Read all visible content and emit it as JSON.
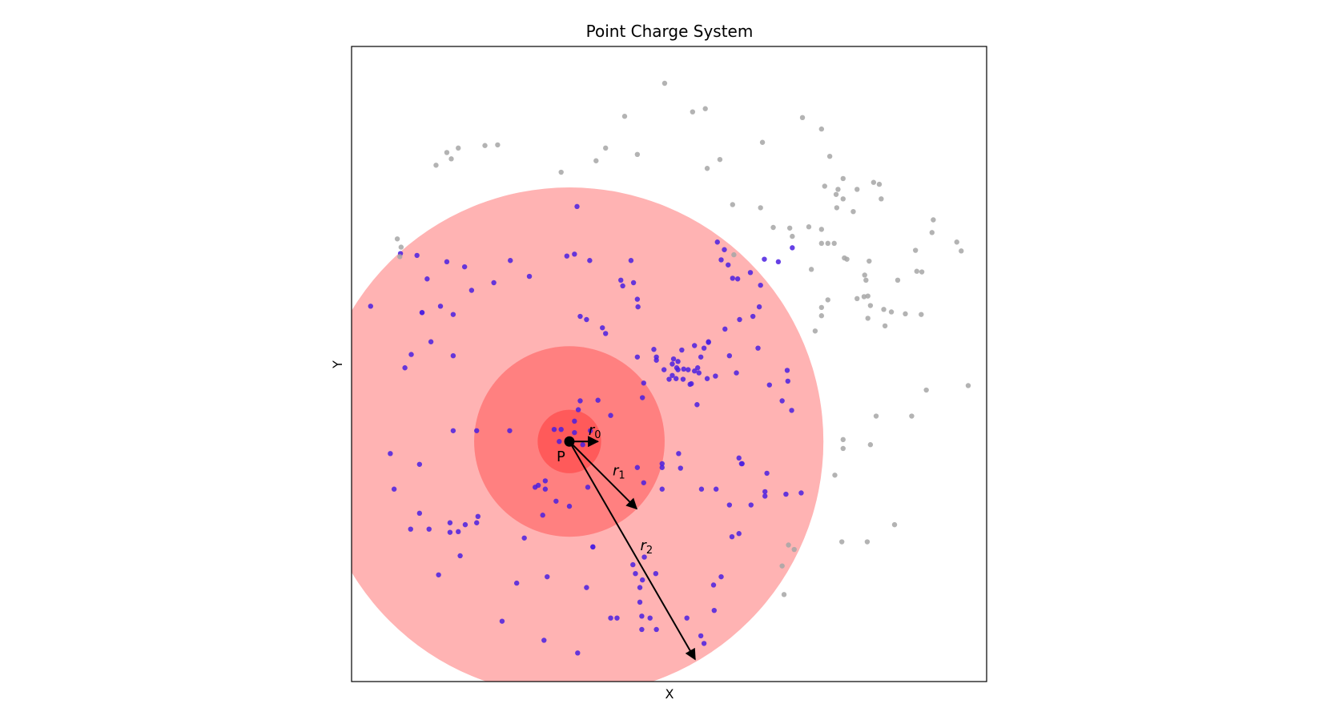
{
  "chart_data": {
    "type": "scatter",
    "title": "Point Charge System",
    "xlabel": "X",
    "ylabel": "Y",
    "xlim": [
      0,
      10
    ],
    "ylim": [
      0,
      10
    ],
    "ticks_visible": false,
    "grid": false,
    "point_P": {
      "label": "P",
      "x": 3.43,
      "y": 3.78,
      "color": "#000000"
    },
    "circles": [
      {
        "name": "r2",
        "radius": 4.0,
        "color": "#ffb3b3"
      },
      {
        "name": "r1",
        "radius": 1.5,
        "color": "#ff8080"
      },
      {
        "name": "r0",
        "radius": 0.5,
        "color": "#ff5a5a"
      }
    ],
    "radius_arrows": [
      {
        "label": "r",
        "subscript": "0",
        "dx": 0.45,
        "dy": 0.0
      },
      {
        "label": "r",
        "subscript": "1",
        "dx": 1.06,
        "dy": -1.06
      },
      {
        "label": "r",
        "subscript": "2",
        "dx": 1.98,
        "dy": -3.43
      }
    ],
    "series": [
      {
        "color": "#4a1fe0",
        "x": [
          3.55,
          2.5,
          3.75,
          4.4,
          1.4,
          0.3,
          0.77,
          1.03,
          1.78,
          1.5,
          1.19,
          1.11,
          1.25,
          1.11,
          1.6,
          1.6,
          0.94,
          0.84,
          1.89,
          2.24,
          2.8,
          3.39,
          3.51,
          4.24,
          4.44,
          4.27,
          4.5,
          4.51,
          3.6,
          3.7,
          3.95,
          4.0,
          4.5,
          4.76,
          4.8,
          4.8,
          5.2,
          5.14,
          5.05,
          5.07,
          5.14,
          5.33,
          5.12,
          5.23,
          5.11,
          5.22,
          5.05,
          5.3,
          5.4,
          5.62,
          5.62,
          5.5,
          5.4,
          5.45,
          5.6,
          5.73,
          6.4,
          6.11,
          6.42,
          6.08,
          6.28,
          5.76,
          5.87,
          5.82,
          5.93,
          6.0,
          6.44,
          6.5,
          6.72,
          6.94,
          6.58,
          6.87,
          6.78,
          6.93,
          6.06,
          5.47,
          4.92,
          5.0,
          3.6,
          4.08,
          3.3,
          3.76,
          3.19,
          3.51,
          3.27,
          3.64,
          2.49,
          1.97,
          1.6,
          0.61,
          0.67,
          0.93,
          1.22,
          1.68,
          2.72,
          2.89,
          3.05,
          2.94,
          3.05,
          3.72,
          4.5,
          4.89,
          4.89,
          4.6,
          5.15,
          5.18,
          5.51,
          5.74,
          6.14,
          6.1,
          6.54,
          6.84,
          7.08,
          6.51,
          6.51,
          4.58,
          3.88,
          3.51,
          3.57,
          5.35,
          5.44
        ],
        "y": [
          7.48,
          6.63,
          6.63,
          6.63,
          5.91,
          5.91,
          6.74,
          6.71,
          6.53,
          6.61,
          6.34,
          5.81,
          5.35,
          5.81,
          5.78,
          5.13,
          5.15,
          4.94,
          6.16,
          6.28,
          6.38,
          6.7,
          6.73,
          6.32,
          6.28,
          6.23,
          6.02,
          5.9,
          5.75,
          5.7,
          5.57,
          5.48,
          5.11,
          5.23,
          5.11,
          5.06,
          5.22,
          5.04,
          5.0,
          5.08,
          4.91,
          4.68,
          4.94,
          4.92,
          4.77,
          4.76,
          4.82,
          4.91,
          5.29,
          5.34,
          5.35,
          5.11,
          4.89,
          4.94,
          4.77,
          4.81,
          5.25,
          5.7,
          5.9,
          6.34,
          6.44,
          6.92,
          6.8,
          6.64,
          6.56,
          6.35,
          6.24,
          6.65,
          6.61,
          6.83,
          4.67,
          4.73,
          4.42,
          4.27,
          4.86,
          4.86,
          4.91,
          4.76,
          4.42,
          4.19,
          3.97,
          3.95,
          3.97,
          3.92,
          3.78,
          3.73,
          3.95,
          3.95,
          3.95,
          3.59,
          3.03,
          2.4,
          2.4,
          2.36,
          2.26,
          3.06,
          3.16,
          3.09,
          3.03,
          3.06,
          3.37,
          3.37,
          3.43,
          3.13,
          3.59,
          3.36,
          3.03,
          3.03,
          3.43,
          3.52,
          3.28,
          2.95,
          2.97,
          2.99,
          2.92,
          4.47,
          4.43,
          4.1,
          4.28,
          4.69,
          4.36
        ]
      },
      {
        "color": "#4a1fe0",
        "x": [
          3.22,
          3.43,
          3.8,
          3.8,
          1.97,
          1.55,
          1.55,
          1.07,
          1.07,
          3.01,
          1.71,
          1.79,
          1.99,
          1.37,
          3.7,
          4.54,
          4.54,
          5.95,
          6.15,
          6.29,
          5.95,
          6.1,
          5.82,
          5.7,
          5.99,
          4.89,
          4.43,
          4.61,
          5.71,
          4.57,
          4.57,
          5.55,
          5.5,
          5.28,
          4.58,
          4.18,
          4.08,
          4.79,
          4.8,
          4.47,
          4.7,
          3.56,
          3.03,
          3.08,
          2.6,
          2.37,
          4.6,
          5.55,
          6.32,
          5.88,
          6.86
        ],
        "y": [
          2.84,
          2.76,
          2.12,
          2.12,
          2.5,
          2.5,
          2.35,
          3.42,
          2.65,
          2.62,
          1.98,
          2.47,
          2.6,
          1.68,
          1.48,
          1.48,
          1.25,
          5.13,
          3.43,
          2.78,
          2.78,
          2.33,
          1.65,
          1.52,
          2.28,
          3.03,
          1.84,
          1.96,
          1.12,
          1.03,
          0.82,
          0.6,
          0.72,
          1.0,
          1.6,
          1.0,
          1.0,
          1.7,
          0.82,
          1.7,
          1.0,
          0.45,
          0.65,
          1.65,
          1.55,
          0.95,
          4.7,
          5.25,
          5.75,
          5.55,
          4.9
        ]
      },
      {
        "color": "#a6a6a6",
        "x": [
          4.93,
          5.37,
          5.57,
          4.3,
          4.5,
          4.0,
          3.85,
          3.3,
          2.3,
          2.1,
          1.68,
          1.57,
          1.33,
          1.5,
          0.72,
          0.78,
          0.76,
          6.47,
          7.4,
          7.1,
          7.53,
          7.66,
          7.74,
          7.96,
          8.08,
          7.96,
          8.13,
          8.38,
          8.13,
          8.6,
          8.15,
          8.88,
          8.9,
          8.98,
          8.97,
          8.72,
          8.4,
          8.5,
          8.17,
          8.07,
          8.1,
          7.8,
          7.6,
          7.5,
          7.4,
          7.4,
          7.2,
          7.76,
          7.45,
          7.74,
          7.63,
          7.64,
          7.9,
          8.22,
          8.31,
          8.34,
          9.14,
          9.16,
          9.53,
          9.6,
          9.71,
          9.05,
          8.82,
          8.26,
          7.74,
          8.17,
          7.74,
          7.61,
          7.72,
          8.12,
          8.55,
          6.78,
          6.81,
          6.88,
          6.97,
          6.02,
          5.6,
          5.8,
          6.0,
          6.9,
          6.94,
          6.64,
          6.44,
          7.24,
          7.5,
          7.4,
          7.4,
          7.3
        ],
        "y": [
          9.42,
          8.97,
          9.02,
          8.9,
          8.3,
          8.4,
          8.2,
          8.02,
          8.45,
          8.44,
          8.4,
          8.23,
          8.13,
          8.33,
          6.97,
          6.84,
          6.69,
          8.49,
          8.7,
          8.88,
          8.27,
          7.75,
          7.92,
          7.75,
          6.4,
          6.03,
          5.72,
          5.86,
          6.07,
          6.32,
          6.62,
          6.79,
          6.46,
          6.45,
          5.78,
          5.79,
          5.6,
          5.82,
          5.92,
          6.06,
          6.32,
          6.65,
          6.9,
          6.9,
          6.9,
          7.12,
          7.16,
          6.67,
          7.8,
          7.6,
          7.67,
          7.46,
          7.4,
          7.86,
          7.83,
          7.6,
          7.07,
          7.27,
          6.92,
          6.78,
          4.66,
          4.59,
          4.18,
          4.18,
          3.81,
          3.73,
          3.67,
          3.25,
          2.2,
          2.2,
          2.47,
          1.82,
          1.37,
          2.15,
          2.08,
          6.72,
          8.08,
          8.22,
          7.51,
          7.14,
          7.01,
          7.15,
          7.46,
          6.49,
          6.01,
          5.89,
          5.76,
          5.52
        ]
      }
    ]
  }
}
